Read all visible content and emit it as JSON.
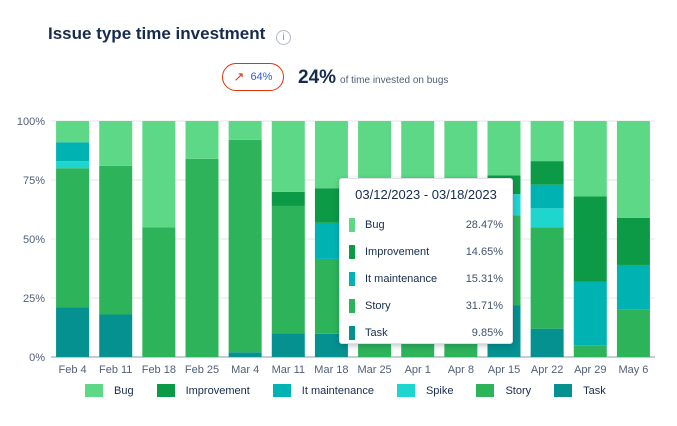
{
  "header": {
    "title": "Issue type time investment",
    "info_icon": "info-icon"
  },
  "summary": {
    "trend_icon": "arrow-up-right-icon",
    "trend_value": "64%",
    "headline_value": "24%",
    "headline_text": "of time invested on bugs"
  },
  "colors": {
    "Bug": "#5dd886",
    "Improvement": "#0c9a46",
    "It maintenance": "#00b3b3",
    "Spike": "#1fd6cf",
    "Story": "#2db45a",
    "Task": "#04918f"
  },
  "chart_data": {
    "type": "bar",
    "stacked": true,
    "normalized": true,
    "categories": [
      "Feb 4",
      "Feb 11",
      "Feb 18",
      "Feb 25",
      "Mar 4",
      "Mar 11",
      "Mar 18",
      "Mar 25",
      "Apr 1",
      "Apr 8",
      "Apr 15",
      "Apr 22",
      "Apr 29",
      "May 6"
    ],
    "series": [
      {
        "name": "Task",
        "values": [
          21,
          18,
          0,
          0,
          2,
          10,
          9.85,
          0,
          0,
          0,
          22,
          12,
          0,
          0
        ]
      },
      {
        "name": "Story",
        "values": [
          59,
          63,
          55,
          84,
          90,
          54,
          31.71,
          53,
          68,
          71,
          38,
          43,
          5,
          20
        ]
      },
      {
        "name": "Spike",
        "values": [
          3,
          0,
          0,
          0,
          0,
          0,
          0,
          0,
          0,
          0,
          9,
          8,
          0,
          0
        ]
      },
      {
        "name": "It maintenance",
        "values": [
          8,
          0,
          0,
          0,
          0,
          0,
          15.31,
          0,
          0,
          0,
          0,
          10,
          27,
          19
        ]
      },
      {
        "name": "Improvement",
        "values": [
          0,
          0,
          0,
          0,
          0,
          6,
          14.65,
          0,
          8,
          5,
          8,
          10,
          36,
          20
        ]
      },
      {
        "name": "Bug",
        "values": [
          9,
          19,
          45,
          16,
          8,
          30,
          28.47,
          47,
          24,
          24,
          23,
          17,
          32,
          41
        ]
      }
    ],
    "y_ticks": [
      "0%",
      "25%",
      "50%",
      "75%",
      "100%"
    ],
    "ylim": [
      0,
      100
    ],
    "legend_position": "bottom",
    "legend": [
      "Bug",
      "Improvement",
      "It maintenance",
      "Spike",
      "Story",
      "Task"
    ],
    "grid": true
  },
  "tooltip": {
    "title": "03/12/2023 - 03/18/2023",
    "rows": [
      {
        "label": "Bug",
        "value": "28.47%",
        "color": "#5dd886"
      },
      {
        "label": "Improvement",
        "value": "14.65%",
        "color": "#0c9a46"
      },
      {
        "label": "It maintenance",
        "value": "15.31%",
        "color": "#00b3b3"
      },
      {
        "label": "Story",
        "value": "31.71%",
        "color": "#2db45a"
      },
      {
        "label": "Task",
        "value": "9.85%",
        "color": "#04918f"
      }
    ]
  }
}
